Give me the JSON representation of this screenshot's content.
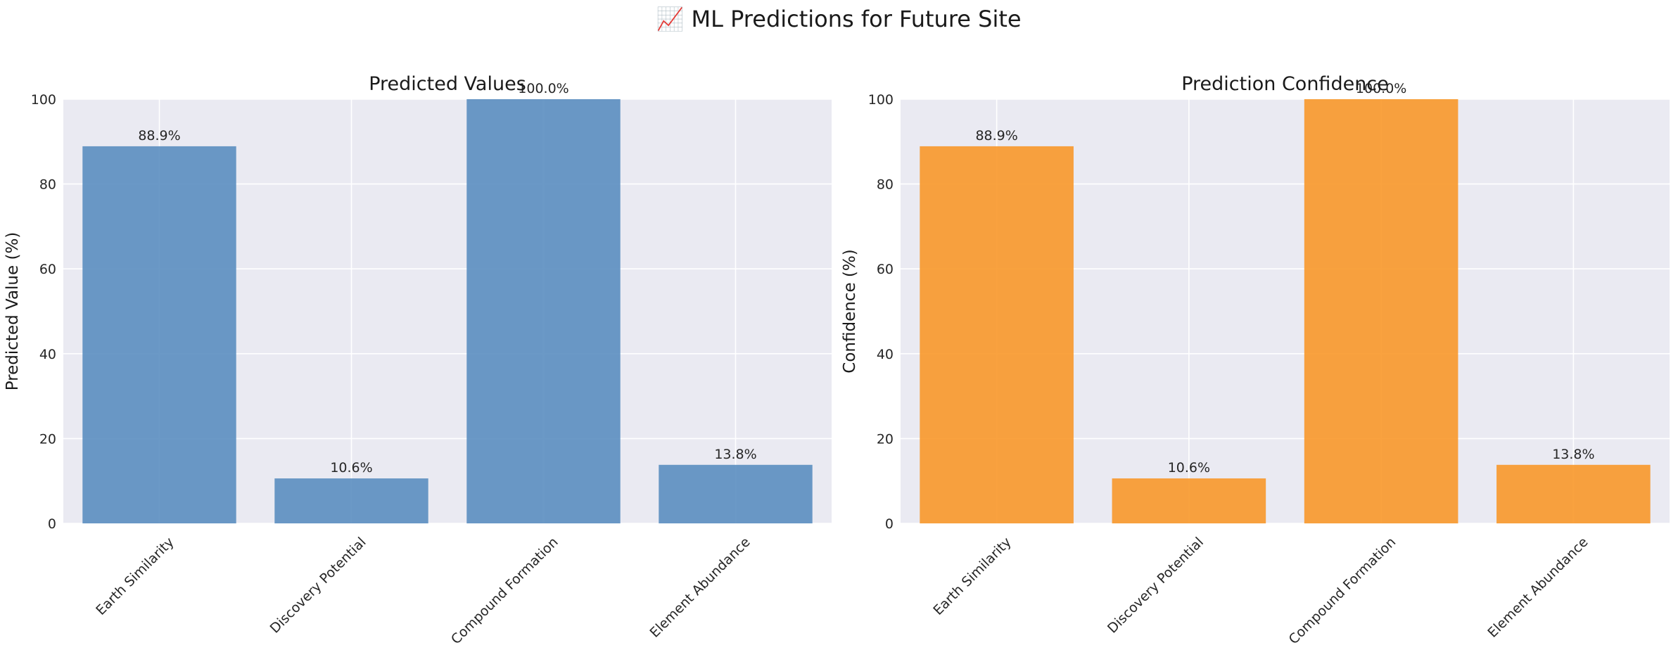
{
  "figure": {
    "title": "📈 ML Predictions for Future Site"
  },
  "chart_data": [
    {
      "type": "bar",
      "title": "Predicted Values",
      "xlabel": "",
      "ylabel": "Predicted Value (%)",
      "ylim": [
        0,
        100
      ],
      "yticks": [
        0,
        20,
        40,
        60,
        80,
        100
      ],
      "grid": true,
      "color": "#5b8ec0",
      "categories": [
        "Earth Similarity",
        "Discovery Potential",
        "Compound Formation",
        "Element Abundance"
      ],
      "values": [
        88.9,
        10.6,
        100.0,
        13.8
      ],
      "labels": [
        "88.9%",
        "10.6%",
        "100.0%",
        "13.8%"
      ]
    },
    {
      "type": "bar",
      "title": "Prediction Confidence",
      "xlabel": "",
      "ylabel": "Confidence (%)",
      "ylim": [
        0,
        100
      ],
      "yticks": [
        0,
        20,
        40,
        60,
        80,
        100
      ],
      "grid": true,
      "color": "#f8982a",
      "categories": [
        "Earth Similarity",
        "Discovery Potential",
        "Compound Formation",
        "Element Abundance"
      ],
      "values": [
        88.9,
        10.6,
        100.0,
        13.8
      ],
      "labels": [
        "88.9%",
        "10.6%",
        "100.0%",
        "13.8%"
      ]
    }
  ]
}
